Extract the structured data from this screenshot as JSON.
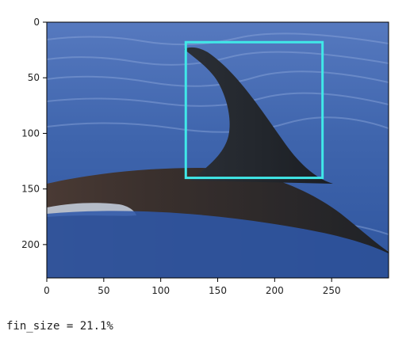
{
  "chart_data": {
    "type": "image",
    "title": "",
    "xlabel": "",
    "ylabel": "",
    "xlim": [
      0,
      300
    ],
    "ylim": [
      230,
      0
    ],
    "x_ticks": [
      0,
      50,
      100,
      150,
      200,
      250
    ],
    "y_ticks": [
      0,
      50,
      100,
      150,
      200
    ],
    "x_tick_labels": [
      "0",
      "50",
      "100",
      "150",
      "200",
      "250"
    ],
    "y_tick_labels": [
      "0",
      "50",
      "100",
      "150",
      "200"
    ],
    "grid": false,
    "bounding_box": {
      "x_min": 122,
      "y_min": 18,
      "x_max": 242,
      "y_max": 140,
      "color": "#40e8e8"
    },
    "image_description_colors": {
      "water": "#3d63a8",
      "fin": "#22262c"
    }
  },
  "output": {
    "text": "fin_size = 21.1%"
  }
}
